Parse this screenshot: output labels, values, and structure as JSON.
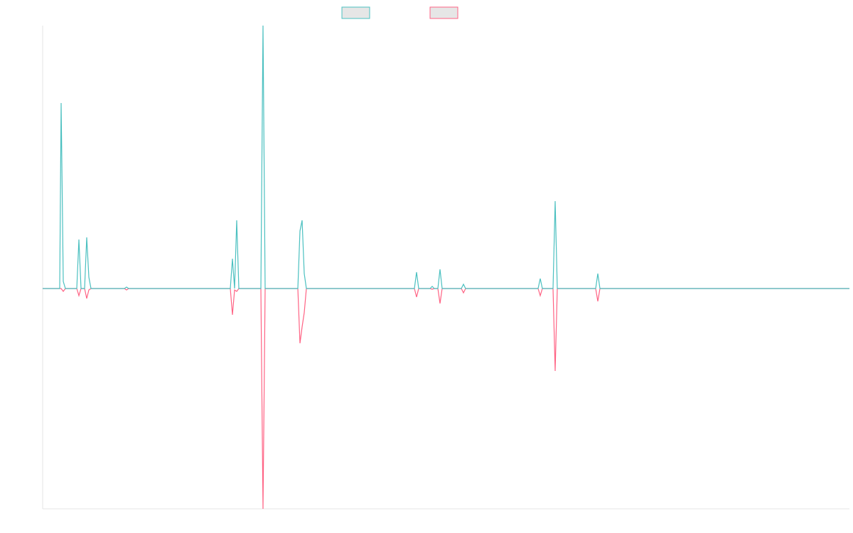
{
  "chart_data": {
    "type": "line",
    "x": [
      0,
      24,
      26,
      29,
      32,
      48,
      51,
      54,
      59,
      62,
      65,
      68,
      115,
      118,
      121,
      264,
      267,
      270,
      273,
      276,
      307,
      310,
      313,
      359,
      362,
      365,
      368,
      371,
      523,
      526,
      529,
      545,
      548,
      551,
      556,
      559,
      562,
      589,
      592,
      595,
      697,
      700,
      703,
      718,
      721,
      724,
      778,
      781,
      784,
      1135
    ],
    "xlim": [
      0,
      1135
    ],
    "ylim": [
      -31,
      37
    ],
    "series": [
      {
        "color": "#4bc0c0",
        "values": [
          0,
          0,
          26.1,
          1,
          0,
          0,
          6.9,
          0,
          0,
          7.2,
          1.6,
          0,
          0,
          0.2,
          0,
          0,
          4.2,
          0,
          9.6,
          0,
          0,
          37,
          0,
          0,
          8.1,
          9.6,
          2.1,
          0,
          0,
          2.3,
          0,
          0,
          0.3,
          0,
          0,
          2.7,
          0,
          0,
          0.6,
          0,
          0,
          1.4,
          0,
          0,
          12.3,
          0,
          0,
          2.1,
          0,
          0
        ]
      },
      {
        "color": "#ff6384",
        "values": [
          0,
          0,
          0,
          -0.4,
          0,
          0,
          -1,
          0,
          0,
          -1.4,
          -0.2,
          0,
          0,
          -0.2,
          0,
          0,
          -3.7,
          -0.2,
          -0.4,
          0,
          0,
          -31,
          0,
          0,
          -7.7,
          -5.4,
          -3.4,
          0,
          0,
          -1.2,
          0,
          0,
          -0.1,
          0,
          0,
          -2.1,
          0,
          0,
          -0.6,
          0,
          0,
          -1,
          0,
          0,
          -11.6,
          0,
          0,
          -1.8,
          0,
          0
        ]
      }
    ]
  }
}
